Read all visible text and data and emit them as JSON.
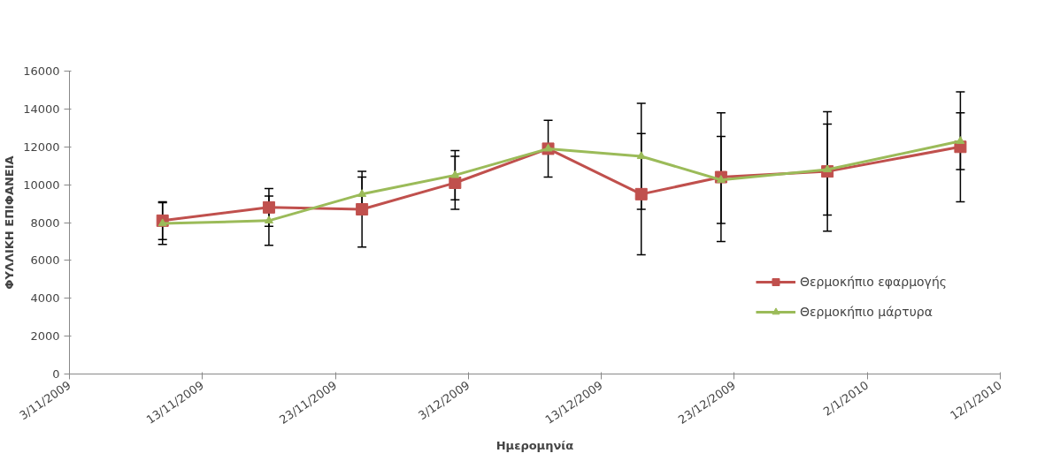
{
  "chart_data": {
    "type": "line",
    "xlabel": "Ημερομηνία",
    "ylabel": "ΦΥΛΛΙΚΗ ΕΠΙΦΑΝΕΙΑ",
    "x": [
      "2009-11-10",
      "2009-11-18",
      "2009-11-25",
      "2009-12-02",
      "2009-12-09",
      "2009-12-16",
      "2009-12-22",
      "2009-12-30",
      "2010-01-09"
    ],
    "series": [
      {
        "name": "Θερμοκήπιο εφαρμογής",
        "color": "#c0504d",
        "marker": "square",
        "values": [
          8100,
          8800,
          8700,
          10100,
          11900,
          9500,
          10400,
          10700,
          12000
        ],
        "errors": [
          1000,
          1000,
          2000,
          1400,
          1500,
          3200,
          3400,
          3150,
          2900
        ]
      },
      {
        "name": "Θερμοκήπιο μάρτυρα",
        "color": "#9bbb59",
        "marker": "triangle",
        "values": [
          7950,
          8100,
          9500,
          10500,
          11900,
          11500,
          10250,
          10800,
          12300
        ],
        "errors": [
          1100,
          1300,
          900,
          1300,
          null,
          2800,
          2300,
          2400,
          1500
        ]
      }
    ],
    "xlim": [
      "2009-11-03",
      "2010-01-12"
    ],
    "xticks": [
      {
        "value": "2009-11-03",
        "label": "3/11/2009"
      },
      {
        "value": "2009-11-13",
        "label": "13/11/2009"
      },
      {
        "value": "2009-11-23",
        "label": "23/11/2009"
      },
      {
        "value": "2009-12-03",
        "label": "3/12/2009"
      },
      {
        "value": "2009-12-13",
        "label": "13/12/2009"
      },
      {
        "value": "2009-12-23",
        "label": "23/12/2009"
      },
      {
        "value": "2010-01-02",
        "label": "2/1/2010"
      },
      {
        "value": "2010-01-12",
        "label": "12/1/2010"
      }
    ],
    "ylim": [
      0,
      16000
    ],
    "yticks": [
      0,
      2000,
      4000,
      6000,
      8000,
      10000,
      12000,
      14000,
      16000
    ],
    "grid": false,
    "legend": "bottom right",
    "line_style": "solid"
  }
}
